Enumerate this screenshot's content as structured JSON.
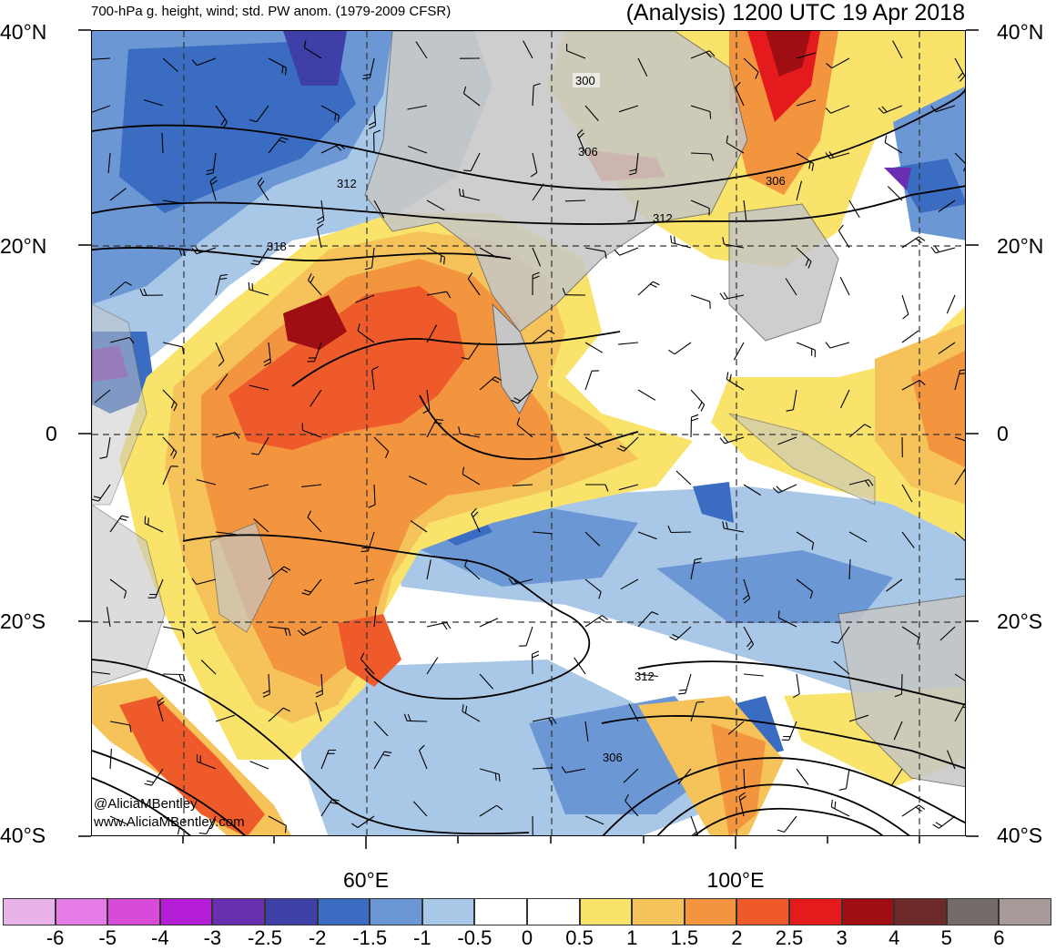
{
  "header": {
    "left_title": "700-hPa g. height, wind; std. PW anom. (1979-2009 CFSR)",
    "right_title": "(Analysis) 1200 UTC 19 Apr 2018"
  },
  "lat_labels": [
    "40°N",
    "20°N",
    "0",
    "20°S",
    "40°S"
  ],
  "lon_labels": [
    "60°E",
    "100°E"
  ],
  "contour_labels": [
    "300",
    "306",
    "306",
    "312",
    "318",
    "312",
    "312",
    "306"
  ],
  "credits": [
    "@AliciaMBentley",
    "www.AliciaMBentley.com"
  ],
  "colorbar": {
    "colors": [
      "#e8b3e8",
      "#e67de6",
      "#d84ad8",
      "#b31ed6",
      "#6a2fb0",
      "#3f3fa8",
      "#3a6cc2",
      "#6b97d4",
      "#a9c8e8",
      "#ffffff",
      "#ffffff",
      "#fae36b",
      "#f5c35a",
      "#f3953f",
      "#ef5a2b",
      "#e41a1c",
      "#9e0e12",
      "#6e2a2a",
      "#756a6a",
      "#a89a98"
    ],
    "labels": [
      "-6",
      "-5",
      "-4",
      "-3",
      "-2.5",
      "-2",
      "-1.5",
      "-1",
      "-0.5",
      "0",
      "0.5",
      "1",
      "1.5",
      "2",
      "2.5",
      "3",
      "4",
      "5",
      "6"
    ]
  },
  "map_colors": {
    "land": "#c6c6c6",
    "coast": "#6b6b6b",
    "contour": "#000000",
    "grid": "#333333"
  }
}
